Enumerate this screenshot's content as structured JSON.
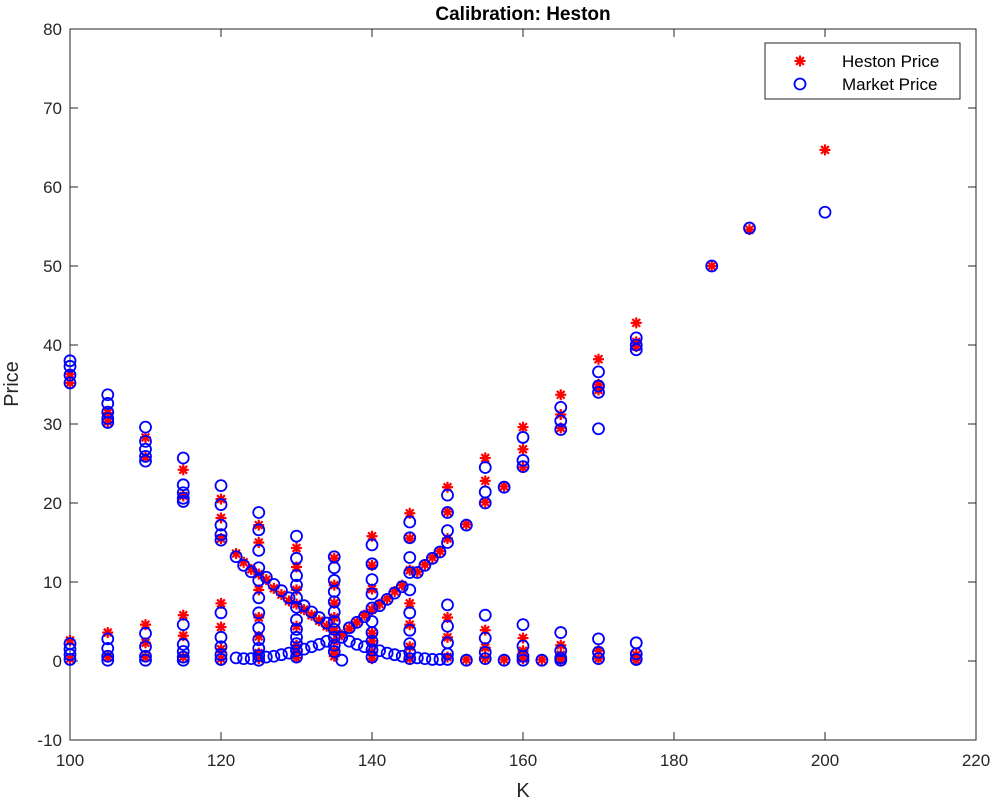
{
  "chart_data": {
    "type": "scatter",
    "title": "Calibration: Heston",
    "xlabel": "K",
    "ylabel": "Price",
    "xlim": [
      100,
      220
    ],
    "ylim": [
      -10,
      80
    ],
    "xticks": [
      "100",
      "120",
      "140",
      "160",
      "180",
      "200",
      "220"
    ],
    "yticks": [
      "-10",
      "0",
      "10",
      "20",
      "30",
      "40",
      "50",
      "60",
      "70",
      "80"
    ],
    "grid": false,
    "legend_position": "top-right",
    "series": [
      {
        "name": "Heston Price",
        "marker": "asterisk",
        "color": "#ff0000",
        "points": [
          [
            100,
            35.2
          ],
          [
            100,
            36.3
          ],
          [
            100,
            2.6
          ],
          [
            100,
            0.3
          ],
          [
            105,
            30.3
          ],
          [
            105,
            31.4
          ],
          [
            105,
            3.6
          ],
          [
            105,
            0.5
          ],
          [
            110,
            28.3
          ],
          [
            110,
            25.8
          ],
          [
            110,
            4.6
          ],
          [
            110,
            2.3
          ],
          [
            110,
            0.5
          ],
          [
            115,
            24.2
          ],
          [
            115,
            20.9
          ],
          [
            115,
            5.8
          ],
          [
            115,
            3.2
          ],
          [
            115,
            0.5
          ],
          [
            120,
            20.5
          ],
          [
            120,
            18.1
          ],
          [
            120,
            15.5
          ],
          [
            120,
            7.3
          ],
          [
            120,
            4.3
          ],
          [
            120,
            1.5
          ],
          [
            120,
            0.3
          ],
          [
            122,
            13.6
          ],
          [
            123,
            12.5
          ],
          [
            124,
            11.6
          ],
          [
            125,
            17.2
          ],
          [
            125,
            15.0
          ],
          [
            125,
            11.0
          ],
          [
            125,
            9.0
          ],
          [
            125,
            5.5
          ],
          [
            125,
            3.1
          ],
          [
            125,
            1.0
          ],
          [
            125,
            0.3
          ],
          [
            126,
            10.3
          ],
          [
            127,
            9.2
          ],
          [
            128,
            8.4
          ],
          [
            129,
            7.6
          ],
          [
            130,
            14.3
          ],
          [
            130,
            11.9
          ],
          [
            130,
            9.0
          ],
          [
            130,
            7.2
          ],
          [
            130,
            4.4
          ],
          [
            130,
            2.0
          ],
          [
            130,
            1.2
          ],
          [
            130,
            0.4
          ],
          [
            131,
            6.5
          ],
          [
            132,
            5.8
          ],
          [
            133,
            5.1
          ],
          [
            134,
            4.4
          ],
          [
            135,
            13.0
          ],
          [
            135,
            9.6
          ],
          [
            135,
            7.3
          ],
          [
            135,
            5.5
          ],
          [
            135,
            3.8
          ],
          [
            135,
            2.5
          ],
          [
            135,
            1.3
          ],
          [
            135,
            0.6
          ],
          [
            136,
            3.3
          ],
          [
            137,
            4.1
          ],
          [
            138,
            4.9
          ],
          [
            139,
            5.8
          ],
          [
            140,
            15.8
          ],
          [
            140,
            12.1
          ],
          [
            140,
            9.1
          ],
          [
            140,
            6.5
          ],
          [
            140,
            3.5
          ],
          [
            140,
            2.5
          ],
          [
            140,
            1.1
          ],
          [
            140,
            0.3
          ],
          [
            141,
            7.2
          ],
          [
            142,
            7.9
          ],
          [
            143,
            8.8
          ],
          [
            144,
            9.6
          ],
          [
            145,
            18.7
          ],
          [
            145,
            15.5
          ],
          [
            145,
            11.5
          ],
          [
            145,
            7.3
          ],
          [
            145,
            4.6
          ],
          [
            145,
            1.8
          ],
          [
            145,
            0.3
          ],
          [
            146,
            11.3
          ],
          [
            147,
            12.2
          ],
          [
            148,
            13.1
          ],
          [
            149,
            13.9
          ],
          [
            150,
            22.0
          ],
          [
            150,
            18.9
          ],
          [
            150,
            15.5
          ],
          [
            150,
            5.5
          ],
          [
            150,
            3.0
          ],
          [
            150,
            0.5
          ],
          [
            152.5,
            17.3
          ],
          [
            152.5,
            0.2
          ],
          [
            155,
            25.7
          ],
          [
            155,
            22.8
          ],
          [
            155,
            20.1
          ],
          [
            155,
            3.9
          ],
          [
            155,
            1.7
          ],
          [
            155,
            0.3
          ],
          [
            157.5,
            22.1
          ],
          [
            157.5,
            0.2
          ],
          [
            160,
            29.6
          ],
          [
            160,
            26.8
          ],
          [
            160,
            24.5
          ],
          [
            160,
            2.9
          ],
          [
            160,
            1.3
          ],
          [
            160,
            0.3
          ],
          [
            162.5,
            0.2
          ],
          [
            165,
            33.7
          ],
          [
            165,
            31.2
          ],
          [
            165,
            29.5
          ],
          [
            165,
            2.0
          ],
          [
            165,
            0.8
          ],
          [
            165,
            0.2
          ],
          [
            170,
            38.2
          ],
          [
            170,
            35.0
          ],
          [
            170,
            34.3
          ],
          [
            170,
            1.3
          ],
          [
            170,
            0.3
          ],
          [
            175,
            42.8
          ],
          [
            175,
            40.4
          ],
          [
            175,
            39.8
          ],
          [
            175,
            0.8
          ],
          [
            175,
            0.1
          ],
          [
            185,
            50.0
          ],
          [
            190,
            54.6
          ],
          [
            200,
            64.7
          ]
        ]
      },
      {
        "name": "Market Price",
        "marker": "circle",
        "color": "#0000ff",
        "points": [
          [
            100,
            38.0
          ],
          [
            100,
            37.3
          ],
          [
            100,
            36.2
          ],
          [
            100,
            35.2
          ],
          [
            100,
            2.2
          ],
          [
            100,
            1.5
          ],
          [
            100,
            0.8
          ],
          [
            100,
            0.2
          ],
          [
            105,
            33.7
          ],
          [
            105,
            32.6
          ],
          [
            105,
            31.5
          ],
          [
            105,
            30.7
          ],
          [
            105,
            30.2
          ],
          [
            105,
            2.8
          ],
          [
            105,
            1.6
          ],
          [
            105,
            0.6
          ],
          [
            105,
            0.1
          ],
          [
            110,
            29.6
          ],
          [
            110,
            27.8
          ],
          [
            110,
            26.8
          ],
          [
            110,
            25.9
          ],
          [
            110,
            25.3
          ],
          [
            110,
            3.5
          ],
          [
            110,
            1.8
          ],
          [
            110,
            0.6
          ],
          [
            110,
            0.1
          ],
          [
            115,
            25.7
          ],
          [
            115,
            22.3
          ],
          [
            115,
            21.3
          ],
          [
            115,
            20.6
          ],
          [
            115,
            20.2
          ],
          [
            115,
            4.6
          ],
          [
            115,
            2.1
          ],
          [
            115,
            1.2
          ],
          [
            115,
            0.5
          ],
          [
            115,
            0.1
          ],
          [
            120,
            22.2
          ],
          [
            120,
            19.8
          ],
          [
            120,
            17.2
          ],
          [
            120,
            16.0
          ],
          [
            120,
            15.3
          ],
          [
            120,
            6.1
          ],
          [
            120,
            3.0
          ],
          [
            120,
            1.8
          ],
          [
            120,
            0.8
          ],
          [
            120,
            0.2
          ],
          [
            122,
            13.2
          ],
          [
            122,
            0.4
          ],
          [
            123,
            12.1
          ],
          [
            123,
            0.3
          ],
          [
            124,
            11.3
          ],
          [
            124,
            0.3
          ],
          [
            125,
            18.8
          ],
          [
            125,
            16.6
          ],
          [
            125,
            14.0
          ],
          [
            125,
            11.8
          ],
          [
            125,
            10.2
          ],
          [
            125,
            8.0
          ],
          [
            125,
            6.1
          ],
          [
            125,
            4.2
          ],
          [
            125,
            2.7
          ],
          [
            125,
            1.6
          ],
          [
            125,
            0.7
          ],
          [
            125,
            0.1
          ],
          [
            126,
            10.6
          ],
          [
            126,
            0.5
          ],
          [
            127,
            9.7
          ],
          [
            127,
            0.6
          ],
          [
            128,
            8.9
          ],
          [
            128,
            0.8
          ],
          [
            129,
            8.0
          ],
          [
            129,
            1.0
          ],
          [
            130,
            15.8
          ],
          [
            130,
            13.0
          ],
          [
            130,
            10.8
          ],
          [
            130,
            9.6
          ],
          [
            130,
            8.0
          ],
          [
            130,
            6.8
          ],
          [
            130,
            5.2
          ],
          [
            130,
            4.0
          ],
          [
            130,
            3.0
          ],
          [
            130,
            2.2
          ],
          [
            130,
            1.3
          ],
          [
            130,
            0.5
          ],
          [
            131,
            7.0
          ],
          [
            131,
            1.5
          ],
          [
            132,
            6.2
          ],
          [
            132,
            1.8
          ],
          [
            133,
            5.5
          ],
          [
            133,
            2.1
          ],
          [
            134,
            4.8
          ],
          [
            134,
            2.5
          ],
          [
            135,
            13.2
          ],
          [
            135,
            11.8
          ],
          [
            135,
            10.2
          ],
          [
            135,
            8.8
          ],
          [
            135,
            7.5
          ],
          [
            135,
            6.2
          ],
          [
            135,
            5.0
          ],
          [
            135,
            4.0
          ],
          [
            135,
            3.0
          ],
          [
            135,
            2.0
          ],
          [
            135,
            1.2
          ],
          [
            136,
            3.0
          ],
          [
            136,
            0.1
          ],
          [
            137,
            4.2
          ],
          [
            137,
            2.5
          ],
          [
            138,
            4.9
          ],
          [
            138,
            2.1
          ],
          [
            139,
            5.6
          ],
          [
            139,
            1.8
          ],
          [
            140,
            14.7
          ],
          [
            140,
            12.3
          ],
          [
            140,
            10.3
          ],
          [
            140,
            8.5
          ],
          [
            140,
            6.7
          ],
          [
            140,
            5.0
          ],
          [
            140,
            3.6
          ],
          [
            140,
            2.5
          ],
          [
            140,
            1.4
          ],
          [
            140,
            0.5
          ],
          [
            141,
            7.0
          ],
          [
            141,
            1.3
          ],
          [
            142,
            7.8
          ],
          [
            142,
            1.0
          ],
          [
            143,
            8.6
          ],
          [
            143,
            0.8
          ],
          [
            144,
            9.4
          ],
          [
            144,
            0.6
          ],
          [
            145,
            17.6
          ],
          [
            145,
            15.6
          ],
          [
            145,
            13.1
          ],
          [
            145,
            11.2
          ],
          [
            145,
            9.0
          ],
          [
            145,
            6.1
          ],
          [
            145,
            3.9
          ],
          [
            145,
            2.2
          ],
          [
            145,
            1.1
          ],
          [
            145,
            0.3
          ],
          [
            146,
            11.2
          ],
          [
            146,
            0.4
          ],
          [
            147,
            12.1
          ],
          [
            147,
            0.3
          ],
          [
            148,
            13.0
          ],
          [
            148,
            0.2
          ],
          [
            149,
            13.8
          ],
          [
            149,
            0.2
          ],
          [
            150,
            21.0
          ],
          [
            150,
            18.8
          ],
          [
            150,
            16.5
          ],
          [
            150,
            15.0
          ],
          [
            150,
            7.1
          ],
          [
            150,
            4.4
          ],
          [
            150,
            2.3
          ],
          [
            150,
            0.9
          ],
          [
            150,
            0.2
          ],
          [
            152.5,
            17.2
          ],
          [
            152.5,
            0.1
          ],
          [
            155,
            24.5
          ],
          [
            155,
            21.4
          ],
          [
            155,
            20.0
          ],
          [
            155,
            5.8
          ],
          [
            155,
            2.9
          ],
          [
            155,
            1.1
          ],
          [
            155,
            0.3
          ],
          [
            157.5,
            22.0
          ],
          [
            157.5,
            0.1
          ],
          [
            160,
            28.3
          ],
          [
            160,
            25.4
          ],
          [
            160,
            24.6
          ],
          [
            160,
            4.6
          ],
          [
            160,
            1.9
          ],
          [
            160,
            0.6
          ],
          [
            160,
            0.1
          ],
          [
            162.5,
            0.1
          ],
          [
            165,
            32.1
          ],
          [
            165,
            30.4
          ],
          [
            165,
            29.3
          ],
          [
            165,
            3.6
          ],
          [
            165,
            1.3
          ],
          [
            165,
            0.4
          ],
          [
            165,
            0.1
          ],
          [
            170,
            36.6
          ],
          [
            170,
            34.8
          ],
          [
            170,
            34.0
          ],
          [
            170,
            29.4
          ],
          [
            170,
            2.8
          ],
          [
            170,
            1.1
          ],
          [
            170,
            0.3
          ],
          [
            175,
            40.9
          ],
          [
            175,
            40.0
          ],
          [
            175,
            39.4
          ],
          [
            175,
            2.3
          ],
          [
            175,
            0.9
          ],
          [
            175,
            0.2
          ],
          [
            185,
            50.0
          ],
          [
            190,
            54.8
          ],
          [
            200,
            56.8
          ]
        ]
      }
    ]
  }
}
